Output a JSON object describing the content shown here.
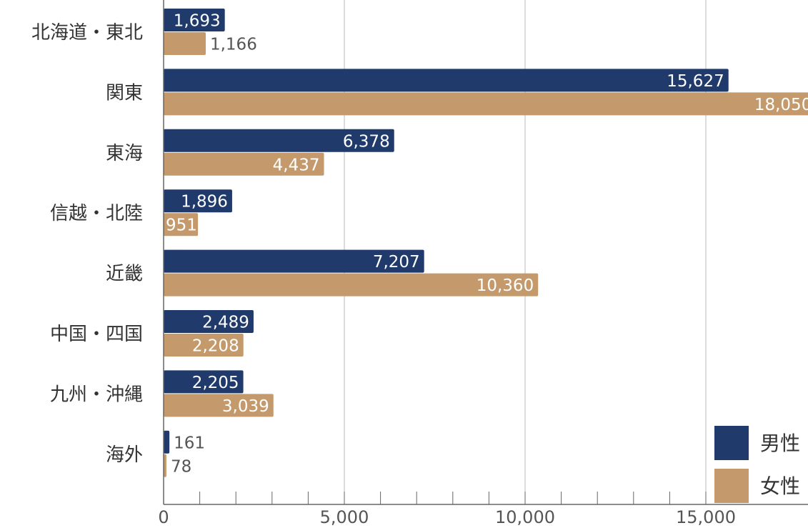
{
  "chart_data": {
    "type": "bar",
    "orientation": "horizontal",
    "categories": [
      "北海道・東北",
      "関東",
      "東海",
      "信越・北陸",
      "近畿",
      "中国・四国",
      "九州・沖縄",
      "海外"
    ],
    "series": [
      {
        "name": "男性",
        "color": "#1f3a6b",
        "values": [
          1693,
          15627,
          6378,
          1896,
          7207,
          2489,
          2205,
          161
        ],
        "labels": [
          "1,693",
          "15,627",
          "6,378",
          "1,896",
          "7,207",
          "2,489",
          "2,205",
          "161"
        ]
      },
      {
        "name": "女性",
        "color": "#c49a6c",
        "values": [
          1166,
          18050,
          4437,
          951,
          10360,
          2208,
          3039,
          78
        ],
        "labels": [
          "1,166",
          "18,050",
          "4,437",
          "951",
          "10,360",
          "2,208",
          "3,039",
          "78"
        ]
      }
    ],
    "x_ticks": [
      0,
      5000,
      10000,
      15000
    ],
    "x_tick_labels": [
      "0",
      "5,000",
      "10,000",
      "15,000"
    ],
    "xlim": [
      0,
      18000
    ],
    "minor_tick_step": 1000,
    "grid": true,
    "legend_position": "bottom-right",
    "title": "",
    "xlabel": "",
    "ylabel": ""
  }
}
